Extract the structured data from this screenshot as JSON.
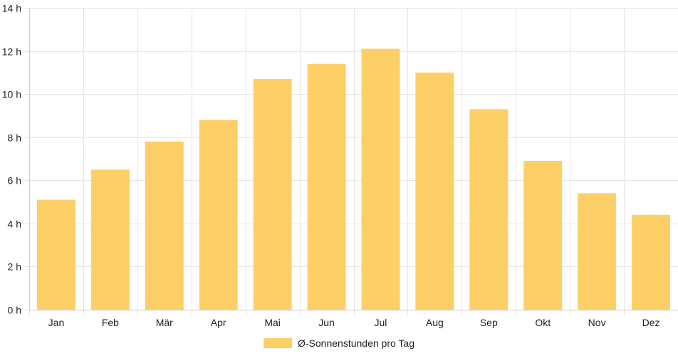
{
  "chart_data": {
    "type": "bar",
    "categories": [
      "Jan",
      "Feb",
      "Mär",
      "Apr",
      "Mai",
      "Jun",
      "Jul",
      "Aug",
      "Sep",
      "Okt",
      "Nov",
      "Dez"
    ],
    "series": [
      {
        "name": "Ø-Sonnenstunden pro Tag",
        "values": [
          5.1,
          6.5,
          7.8,
          8.8,
          10.7,
          11.4,
          12.1,
          11.0,
          9.3,
          6.9,
          5.4,
          4.4
        ]
      }
    ],
    "ylim": [
      0,
      14
    ],
    "yticks": [
      0,
      2,
      4,
      6,
      8,
      10,
      12,
      14
    ],
    "ytick_labels": [
      "0 h",
      "2 h",
      "4 h",
      "6 h",
      "8 h",
      "10 h",
      "12 h",
      "14 h"
    ],
    "grid": true,
    "legend_position": "bottom-center",
    "bar_color": "#FDD067",
    "grid_color": "#E5E5E5",
    "axis_color": "#CCCCCC"
  }
}
